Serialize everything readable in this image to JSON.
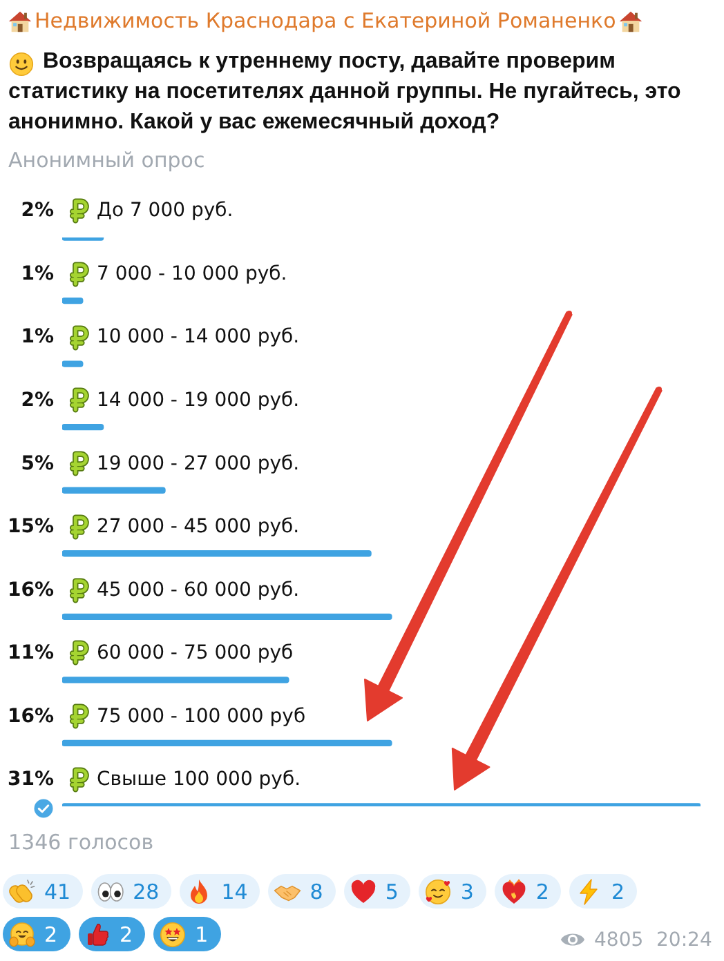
{
  "chart_data": {
    "type": "bar",
    "orientation": "horizontal",
    "title": "Недвижимость Краснодара с Екатериной Романенко",
    "subtitle": "Возвращаясь к утреннему посту, давайте проверим статистику на посетителях данной группы. Не пугайтесь, это анонимно. Какой у вас ежемесячный доход?",
    "categories": [
      "До 7 000 руб.",
      "7 000 - 10 000 руб.",
      "10 000 - 14 000 руб.",
      "14 000 - 19 000 руб.",
      "19 000 - 27 000 руб.",
      "27 000 - 45 000 руб.",
      "45 000 - 60 000 руб.",
      "60 000 - 75 000 руб",
      "75 000 - 100 000 руб",
      "Свыше 100 000 руб."
    ],
    "values": [
      2,
      1,
      1,
      2,
      5,
      15,
      16,
      11,
      16,
      31
    ],
    "value_labels": [
      "2%",
      "1%",
      "1%",
      "2%",
      "5%",
      "15%",
      "16%",
      "11%",
      "16%",
      "31%"
    ],
    "color": "#3fa3e2",
    "legend": false,
    "grid": false,
    "tick_labels": "y",
    "annotations": [
      "Анонимный опрос",
      "1346 голосов",
      "41",
      "28",
      "14",
      "8",
      "5",
      "3",
      "2",
      "2",
      "2",
      "2",
      "1",
      "4805",
      "20:24"
    ]
  }
}
